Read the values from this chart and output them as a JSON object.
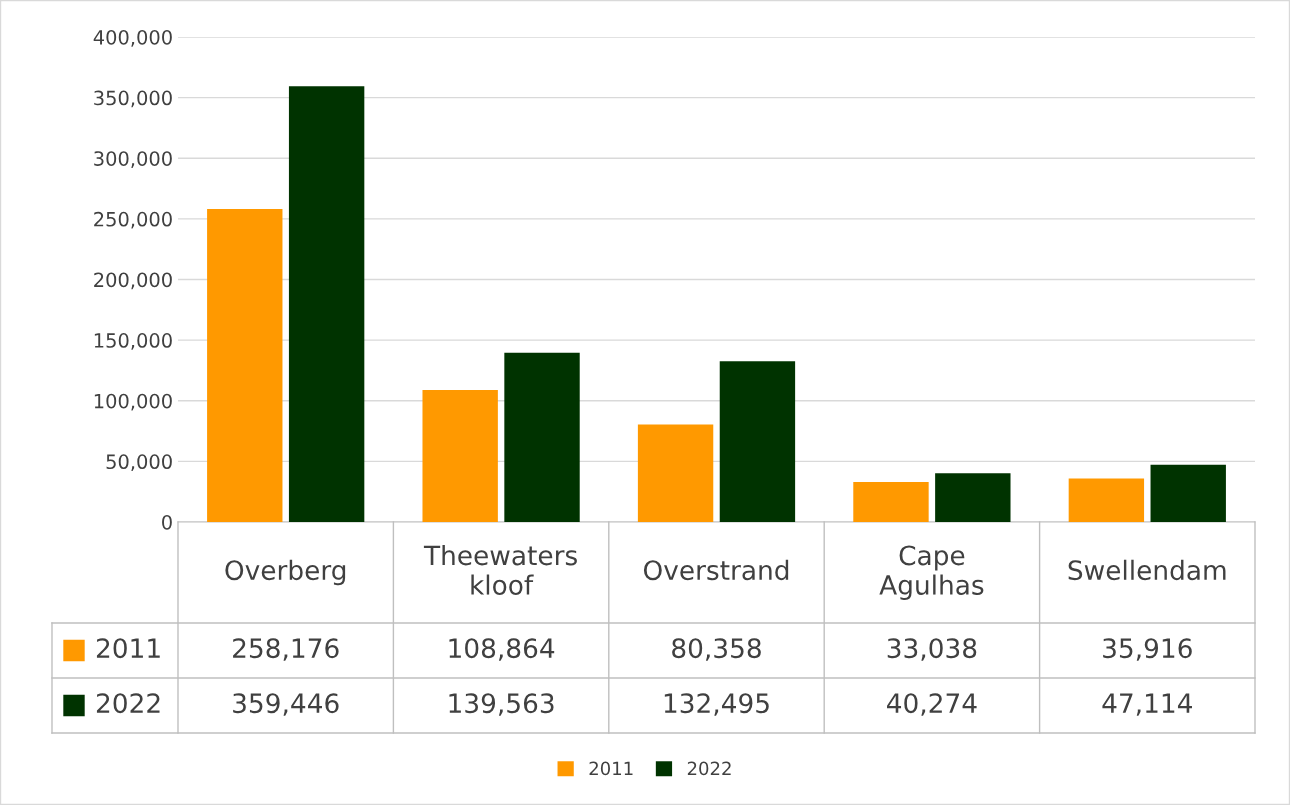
{
  "chart_data": {
    "type": "bar",
    "categories": [
      "Overberg",
      "Theewaters kloof",
      "Overstrand",
      "Cape Agulhas",
      "Swellendam"
    ],
    "series": [
      {
        "name": "2011",
        "color": "#ff9900",
        "values": [
          258176,
          108864,
          80358,
          33038,
          35916
        ],
        "value_labels": [
          "258,176",
          "108,864",
          "80,358",
          "33,038",
          "35,916"
        ]
      },
      {
        "name": "2022",
        "color": "#003300",
        "values": [
          359446,
          139563,
          132495,
          40274,
          47114
        ],
        "value_labels": [
          "359,446",
          "139,563",
          "132,495",
          "40,274",
          "47,114"
        ]
      }
    ],
    "ylim": [
      0,
      400000
    ],
    "yticks": [
      {
        "value": 0,
        "label": "0"
      },
      {
        "value": 50000,
        "label": "50,000"
      },
      {
        "value": 100000,
        "label": "100,000"
      },
      {
        "value": 150000,
        "label": "150,000"
      },
      {
        "value": 200000,
        "label": "200,000"
      },
      {
        "value": 250000,
        "label": "250,000"
      },
      {
        "value": 300000,
        "label": "300,000"
      },
      {
        "value": 350000,
        "label": "350,000"
      },
      {
        "value": 400000,
        "label": "400,000"
      }
    ],
    "grid": "y",
    "legend": "bottom"
  }
}
